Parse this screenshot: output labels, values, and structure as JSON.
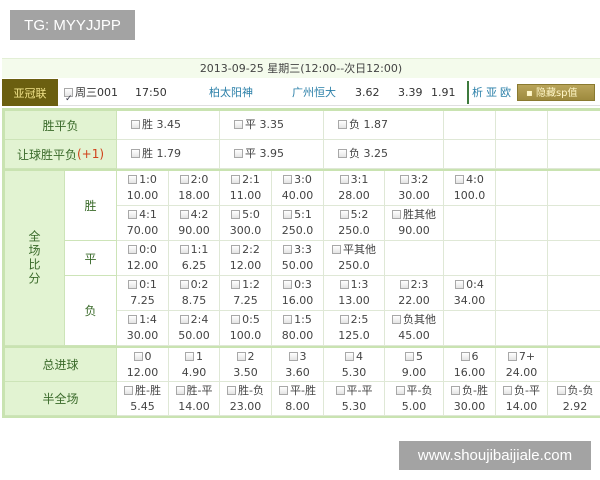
{
  "watermark_top": "TG: MYYJJPP",
  "watermark_bottom": "www.shoujibaijiale.com",
  "date_header": "2013-09-25 星期三(12:00--次日12:00)",
  "match": {
    "league": "亚冠联",
    "checked": true,
    "code": "周三001",
    "time": "17:50",
    "home": "柏太阳神",
    "away": "广州恒大",
    "odds": [
      "3.62",
      "3.39",
      "1.91"
    ],
    "links": [
      "析",
      "亚",
      "欧"
    ],
    "hide_button": "隐藏sp值",
    "league_color": "#6b5f10",
    "team_color": "#2a7fa8"
  },
  "spf": {
    "label": "胜平负",
    "options": [
      {
        "label": "胜",
        "odds": "3.45"
      },
      {
        "label": "平",
        "odds": "3.35"
      },
      {
        "label": "负",
        "odds": "1.87"
      }
    ]
  },
  "rqspf": {
    "label": "让球胜平负",
    "handicap": "(+1)",
    "options": [
      {
        "label": "胜",
        "odds": "1.79"
      },
      {
        "label": "平",
        "odds": "3.95"
      },
      {
        "label": "负",
        "odds": "3.25"
      }
    ]
  },
  "score": {
    "label": "全场比分",
    "groups": [
      {
        "label": "胜",
        "rows": [
          [
            {
              "label": "1:0",
              "odds": "10.00"
            },
            {
              "label": "2:0",
              "odds": "18.00"
            },
            {
              "label": "2:1",
              "odds": "11.00"
            },
            {
              "label": "3:0",
              "odds": "40.00"
            },
            {
              "label": "3:1",
              "odds": "28.00"
            },
            {
              "label": "3:2",
              "odds": "30.00"
            },
            {
              "label": "4:0",
              "odds": "100.0"
            }
          ],
          [
            {
              "label": "4:1",
              "odds": "70.00"
            },
            {
              "label": "4:2",
              "odds": "90.00"
            },
            {
              "label": "5:0",
              "odds": "300.0"
            },
            {
              "label": "5:1",
              "odds": "250.0"
            },
            {
              "label": "5:2",
              "odds": "250.0"
            },
            {
              "label": "胜其他",
              "odds": "90.00"
            }
          ]
        ]
      },
      {
        "label": "平",
        "rows": [
          [
            {
              "label": "0:0",
              "odds": "12.00"
            },
            {
              "label": "1:1",
              "odds": "6.25"
            },
            {
              "label": "2:2",
              "odds": "12.00"
            },
            {
              "label": "3:3",
              "odds": "50.00"
            },
            {
              "label": "平其他",
              "odds": "250.0"
            }
          ]
        ]
      },
      {
        "label": "负",
        "rows": [
          [
            {
              "label": "0:1",
              "odds": "7.25"
            },
            {
              "label": "0:2",
              "odds": "8.75"
            },
            {
              "label": "1:2",
              "odds": "7.25"
            },
            {
              "label": "0:3",
              "odds": "16.00"
            },
            {
              "label": "1:3",
              "odds": "13.00"
            },
            {
              "label": "2:3",
              "odds": "22.00"
            },
            {
              "label": "0:4",
              "odds": "34.00"
            }
          ],
          [
            {
              "label": "1:4",
              "odds": "30.00"
            },
            {
              "label": "2:4",
              "odds": "50.00"
            },
            {
              "label": "0:5",
              "odds": "100.0"
            },
            {
              "label": "1:5",
              "odds": "80.00"
            },
            {
              "label": "2:5",
              "odds": "125.0"
            },
            {
              "label": "负其他",
              "odds": "45.00"
            }
          ]
        ]
      }
    ]
  },
  "total_goals": {
    "label": "总进球",
    "options": [
      {
        "label": "0",
        "odds": "12.00"
      },
      {
        "label": "1",
        "odds": "4.90"
      },
      {
        "label": "2",
        "odds": "3.50"
      },
      {
        "label": "3",
        "odds": "3.60"
      },
      {
        "label": "4",
        "odds": "5.30"
      },
      {
        "label": "5",
        "odds": "9.00"
      },
      {
        "label": "6",
        "odds": "16.00"
      },
      {
        "label": "7+",
        "odds": "24.00"
      }
    ]
  },
  "half_full": {
    "label": "半全场",
    "options": [
      {
        "label": "胜-胜",
        "odds": "5.45"
      },
      {
        "label": "胜-平",
        "odds": "14.00"
      },
      {
        "label": "胜-负",
        "odds": "23.00"
      },
      {
        "label": "平-胜",
        "odds": "8.00"
      },
      {
        "label": "平-平",
        "odds": "5.30"
      },
      {
        "label": "平-负",
        "odds": "5.00"
      },
      {
        "label": "负-胜",
        "odds": "30.00"
      },
      {
        "label": "负-平",
        "odds": "14.00"
      },
      {
        "label": "负-负",
        "odds": "2.92"
      }
    ]
  }
}
